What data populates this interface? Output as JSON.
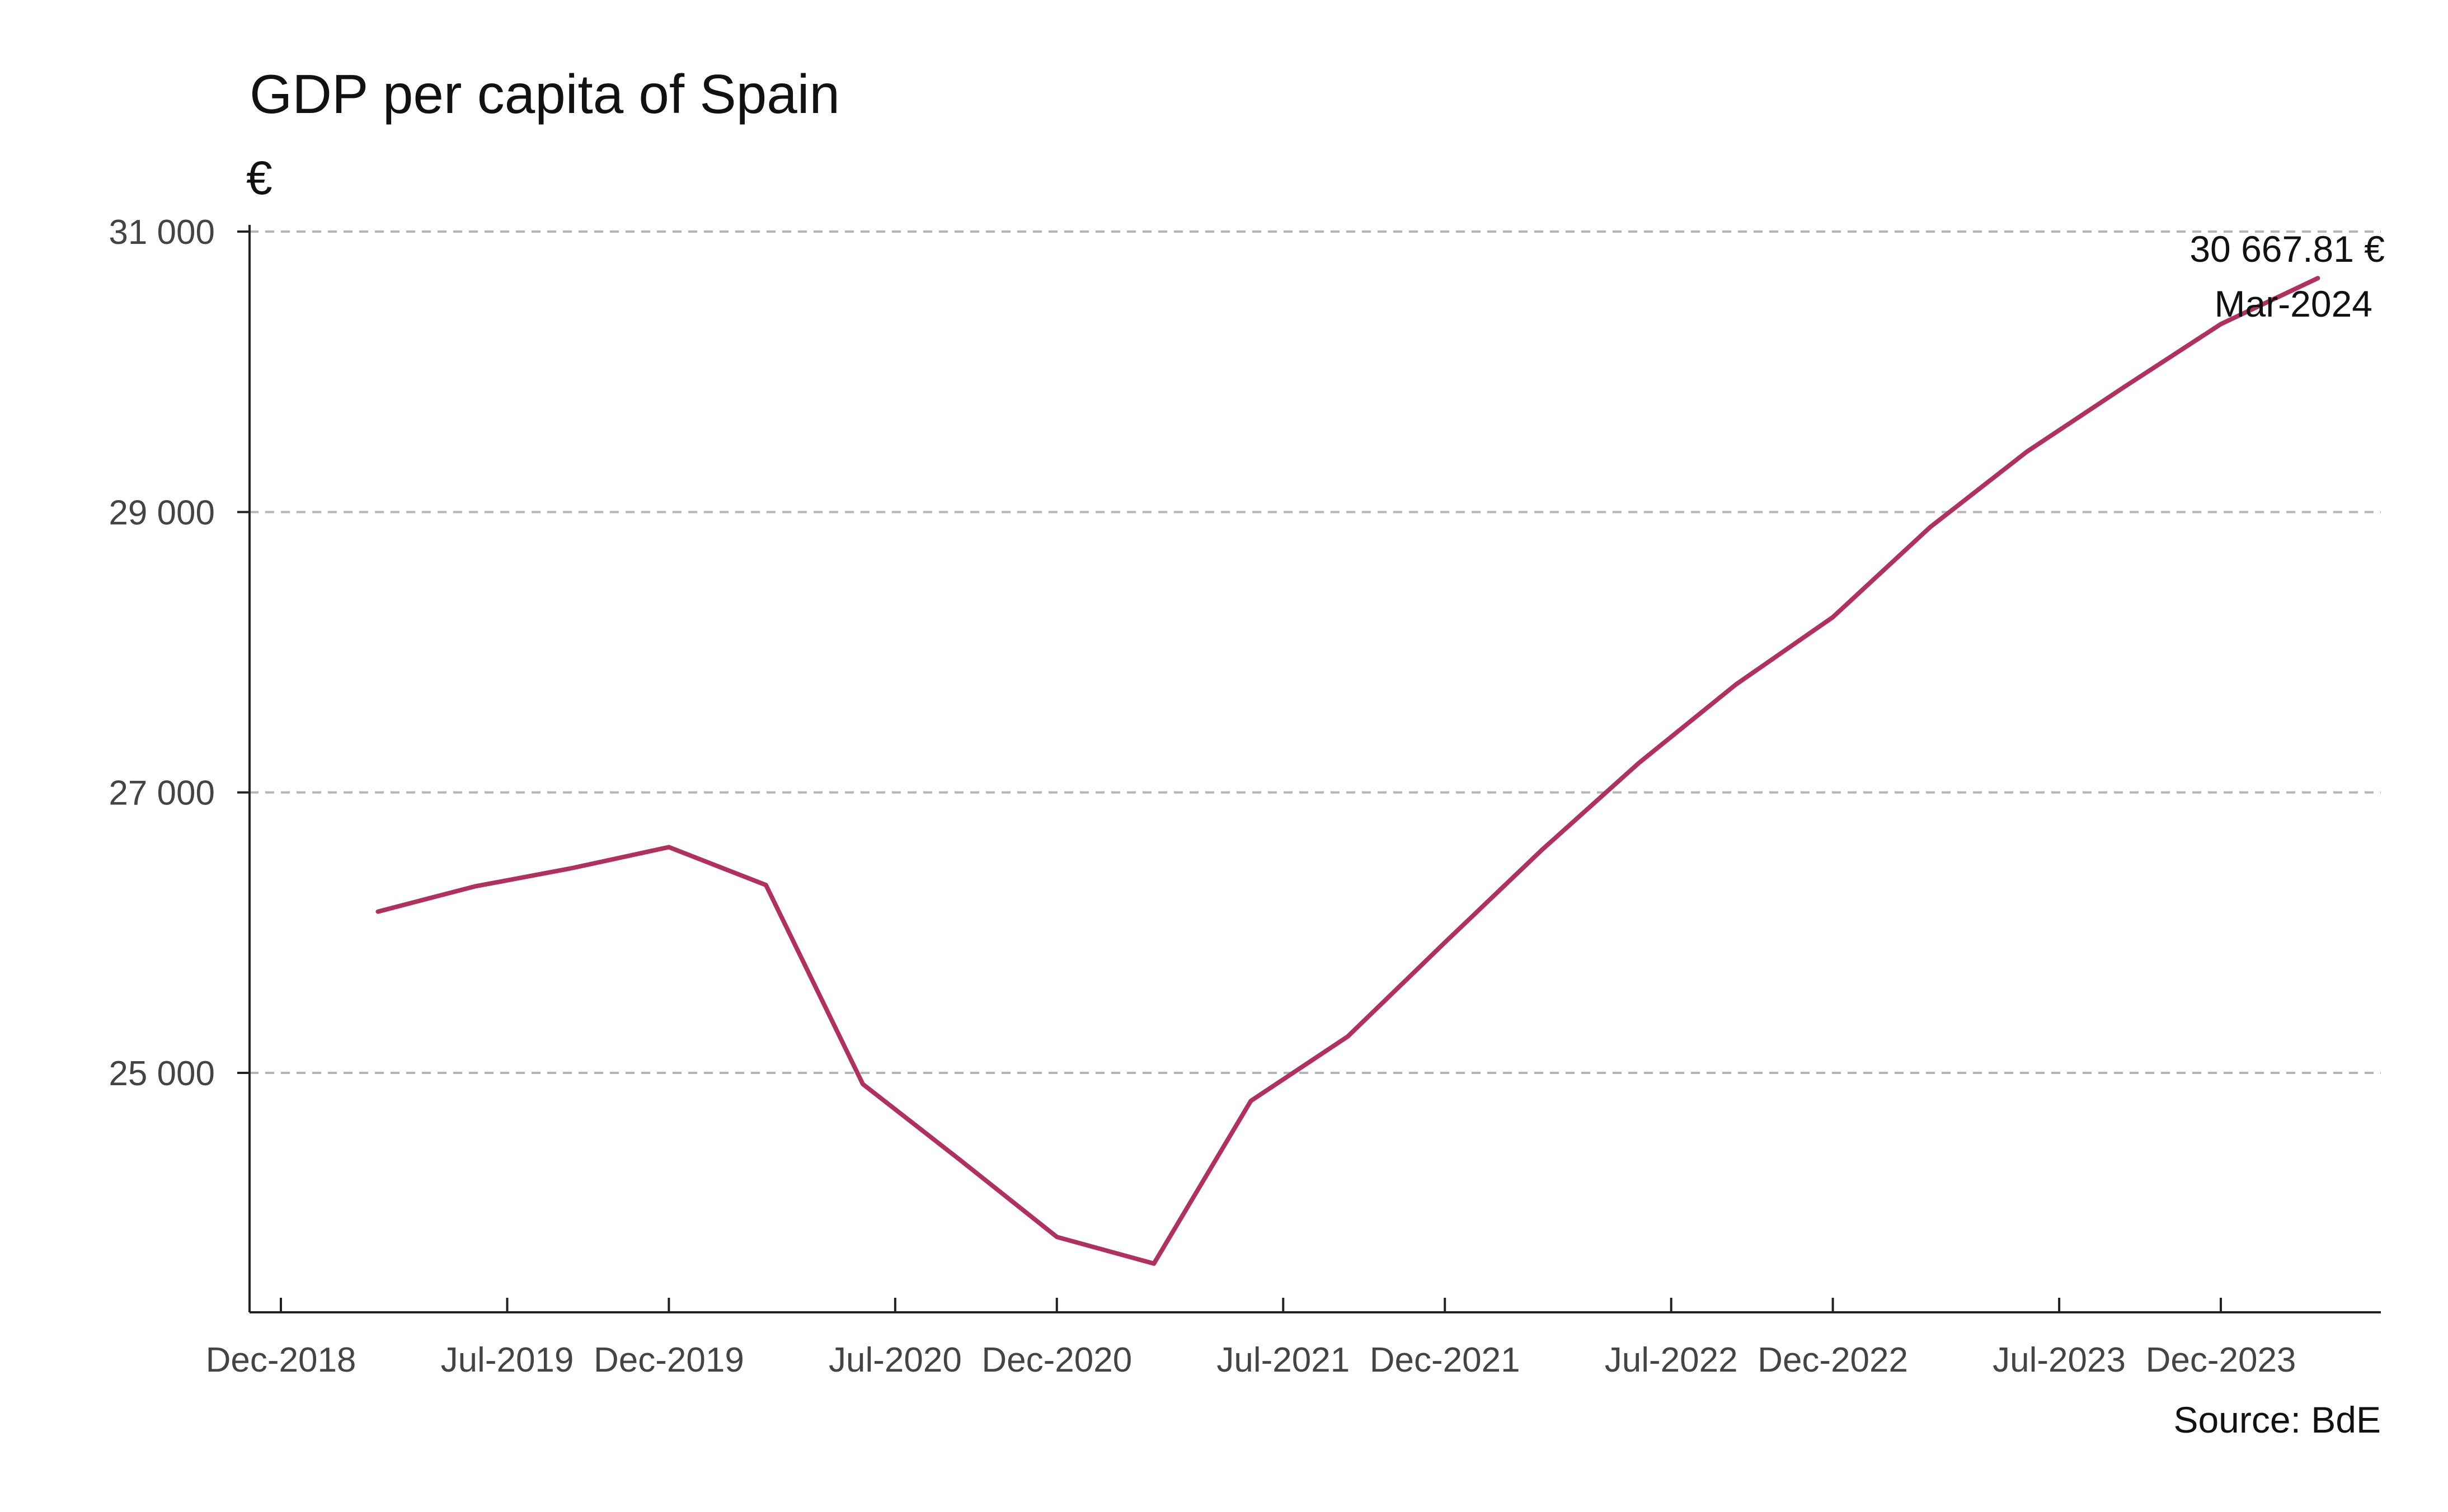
{
  "chart_data": {
    "type": "line",
    "title": "GDP per capita of Spain",
    "unit_label": "€",
    "source": "Source: BdE",
    "xlabel": "",
    "ylabel": "",
    "ylim": [
      23500,
      31200
    ],
    "yticks": [
      25000,
      27000,
      29000,
      31000
    ],
    "ytick_labels": [
      "25 000",
      "27 000",
      "29 000",
      "31 000"
    ],
    "xticks": [
      "2018-12",
      "2019-07",
      "2019-12",
      "2020-07",
      "2020-12",
      "2021-07",
      "2021-12",
      "2022-07",
      "2022-12",
      "2023-07",
      "2023-12"
    ],
    "xtick_labels": [
      "Dec-2018",
      "Jul-2019",
      "Dec-2019",
      "Jul-2020",
      "Dec-2020",
      "Jul-2021",
      "Dec-2021",
      "Jul-2022",
      "Dec-2022",
      "Jul-2023",
      "Dec-2023"
    ],
    "grid": "horizontal dashed",
    "series": [
      {
        "color": "#b03060",
        "x": [
          "2019-03",
          "2019-06",
          "2019-09",
          "2019-12",
          "2020-03",
          "2020-06",
          "2020-09",
          "2020-12",
          "2021-03",
          "2021-06",
          "2021-09",
          "2021-12",
          "2022-03",
          "2022-06",
          "2022-09",
          "2022-12",
          "2023-03",
          "2023-06",
          "2023-09",
          "2023-12",
          "2024-03"
        ],
        "values": [
          26150,
          26330,
          26460,
          26610,
          26340,
          24920,
          24380,
          23830,
          23640,
          24800,
          25260,
          25930,
          26590,
          27210,
          27770,
          28250,
          28890,
          29430,
          29890,
          30340,
          30667.81
        ]
      }
    ],
    "annotation": {
      "value_label": "30 667.81 €",
      "date_label": "Mar-2024"
    }
  }
}
